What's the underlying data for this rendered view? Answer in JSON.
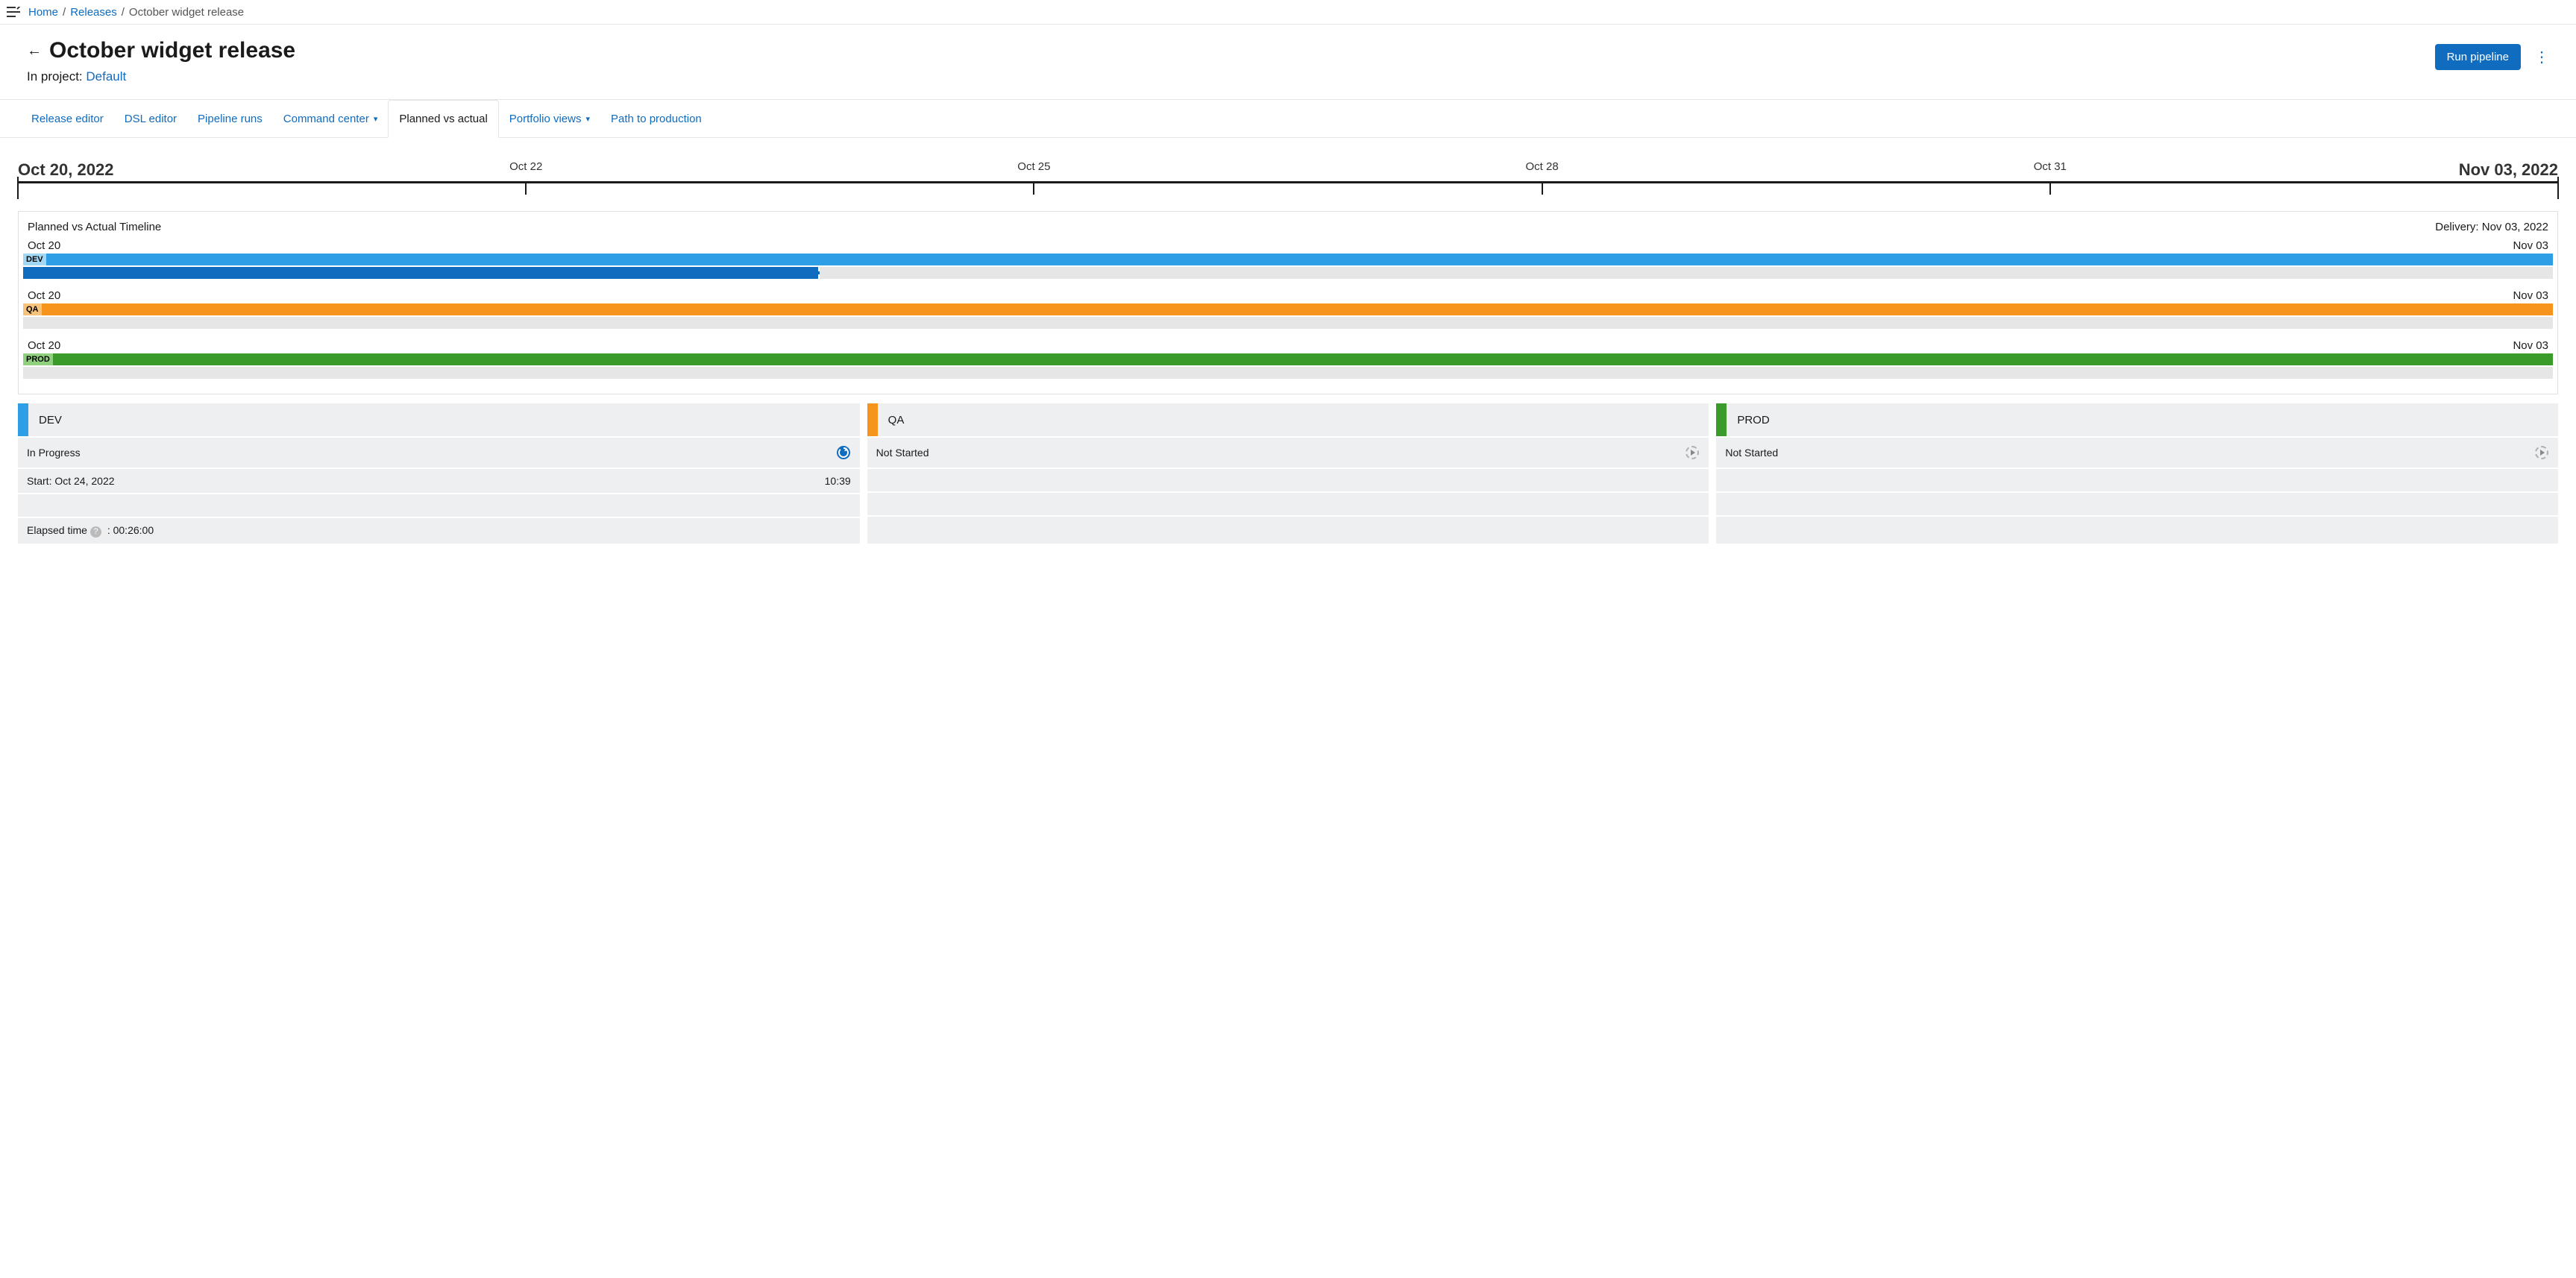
{
  "colors": {
    "link": "#0f6cbf",
    "text": "#1a1a1a",
    "border": "#e5e5e5",
    "panel_bg": "#edeff1",
    "track_bg": "#e6e6e6"
  },
  "breadcrumb": {
    "items": [
      {
        "label": "Home",
        "link": true
      },
      {
        "label": "Releases",
        "link": true
      },
      {
        "label": "October widget release",
        "link": false
      }
    ]
  },
  "header": {
    "title": "October widget release",
    "project_prefix": "In project: ",
    "project_name": "Default",
    "run_button": "Run pipeline"
  },
  "tabs": [
    {
      "label": "Release editor",
      "active": false,
      "dropdown": false
    },
    {
      "label": "DSL editor",
      "active": false,
      "dropdown": false
    },
    {
      "label": "Pipeline runs",
      "active": false,
      "dropdown": false
    },
    {
      "label": "Command center",
      "active": false,
      "dropdown": true
    },
    {
      "label": "Planned vs actual",
      "active": true,
      "dropdown": false
    },
    {
      "label": "Portfolio views",
      "active": false,
      "dropdown": true
    },
    {
      "label": "Path to production",
      "active": false,
      "dropdown": false
    }
  ],
  "ruler": {
    "start_label": "Oct 20, 2022",
    "end_label": "Nov 03, 2022",
    "ticks": [
      {
        "pos_pct": 0,
        "label": "",
        "big": true
      },
      {
        "pos_pct": 20,
        "label": "Oct 22",
        "big": false
      },
      {
        "pos_pct": 40,
        "label": "Oct 25",
        "big": false
      },
      {
        "pos_pct": 60,
        "label": "Oct 28",
        "big": false
      },
      {
        "pos_pct": 80,
        "label": "Oct 31",
        "big": false
      },
      {
        "pos_pct": 100,
        "label": "",
        "big": true
      }
    ]
  },
  "timeline": {
    "title": "Planned vs Actual Timeline",
    "delivery_label": "Delivery: Nov 03, 2022",
    "stages": [
      {
        "name": "DEV",
        "left_date": "Oct 20",
        "right_date": "Nov 03",
        "planned_color": "#2e9fe6",
        "planned_tag_bg": "#a3d8f5",
        "planned_start_pct": 0,
        "planned_end_pct": 100,
        "actual_color": "#0f6cbf",
        "actual_start_pct": 0,
        "actual_end_pct": 31.5
      },
      {
        "name": "QA",
        "left_date": "Oct 20",
        "right_date": "Nov 03",
        "planned_color": "#f7941d",
        "planned_tag_bg": "#f7c37a",
        "planned_start_pct": 0,
        "planned_end_pct": 100,
        "actual_color": null,
        "actual_start_pct": 0,
        "actual_end_pct": 0
      },
      {
        "name": "PROD",
        "left_date": "Oct 20",
        "right_date": "Nov 03",
        "planned_color": "#3a9b2b",
        "planned_tag_bg": "#8fd07f",
        "planned_start_pct": 0,
        "planned_end_pct": 100,
        "actual_color": null,
        "actual_start_pct": 0,
        "actual_end_pct": 0
      }
    ]
  },
  "env_cards": [
    {
      "name": "DEV",
      "stripe_color": "#2e9fe6",
      "status": "In Progress",
      "status_icon": "running",
      "start_label": "Start: Oct 24, 2022",
      "start_time": "10:39",
      "elapsed_prefix": "Elapsed time",
      "elapsed_value": ": 00:26:00"
    },
    {
      "name": "QA",
      "stripe_color": "#f7941d",
      "status": "Not Started",
      "status_icon": "idle",
      "start_label": "",
      "start_time": "",
      "elapsed_prefix": "",
      "elapsed_value": ""
    },
    {
      "name": "PROD",
      "stripe_color": "#3a9b2b",
      "status": "Not Started",
      "status_icon": "idle",
      "start_label": "",
      "start_time": "",
      "elapsed_prefix": "",
      "elapsed_value": ""
    }
  ]
}
